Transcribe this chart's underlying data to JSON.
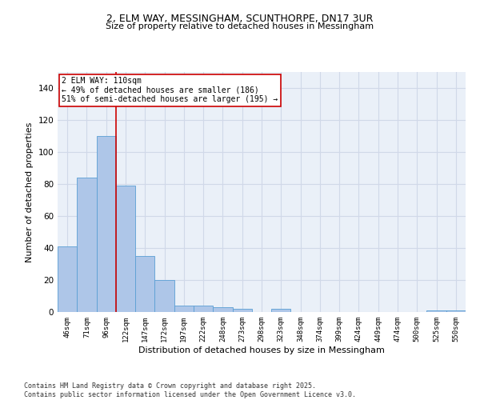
{
  "title_line1": "2, ELM WAY, MESSINGHAM, SCUNTHORPE, DN17 3UR",
  "title_line2": "Size of property relative to detached houses in Messingham",
  "xlabel": "Distribution of detached houses by size in Messingham",
  "ylabel": "Number of detached properties",
  "categories": [
    "46sqm",
    "71sqm",
    "96sqm",
    "122sqm",
    "147sqm",
    "172sqm",
    "197sqm",
    "222sqm",
    "248sqm",
    "273sqm",
    "298sqm",
    "323sqm",
    "348sqm",
    "374sqm",
    "399sqm",
    "424sqm",
    "449sqm",
    "474sqm",
    "500sqm",
    "525sqm",
    "550sqm"
  ],
  "values": [
    41,
    84,
    110,
    79,
    35,
    20,
    4,
    4,
    3,
    2,
    0,
    2,
    0,
    0,
    0,
    0,
    0,
    0,
    0,
    1,
    1
  ],
  "bar_color": "#aec6e8",
  "bar_edge_color": "#5a9fd4",
  "vline_x_index": 2.5,
  "vline_color": "#cc0000",
  "annotation_text": "2 ELM WAY: 110sqm\n← 49% of detached houses are smaller (186)\n51% of semi-detached houses are larger (195) →",
  "annotation_box_color": "#ffffff",
  "annotation_box_edge": "#cc0000",
  "annotation_fontsize": 7,
  "grid_color": "#d0d8e8",
  "background_color": "#eaf0f8",
  "ylim": [
    0,
    150
  ],
  "yticks": [
    0,
    20,
    40,
    60,
    80,
    100,
    120,
    140
  ],
  "footer_line1": "Contains HM Land Registry data © Crown copyright and database right 2025.",
  "footer_line2": "Contains public sector information licensed under the Open Government Licence v3.0.",
  "footer_fontsize": 6,
  "title1_fontsize": 9,
  "title2_fontsize": 8
}
